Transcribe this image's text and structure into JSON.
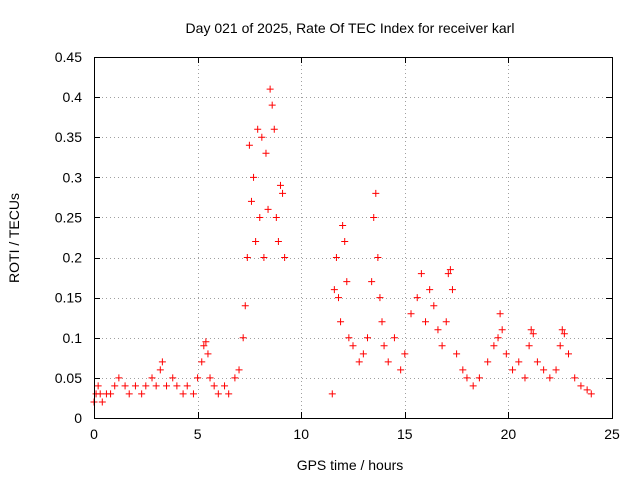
{
  "chart_data": {
    "type": "scatter",
    "title": "Day 021 of 2025, Rate Of TEC Index for receiver karl",
    "xlabel": "GPS time / hours",
    "ylabel": "ROTI / TECUs",
    "xlim": [
      0,
      25
    ],
    "ylim": [
      0,
      0.45
    ],
    "x_ticks": [
      "0",
      "5",
      "10",
      "15",
      "20",
      "25"
    ],
    "y_ticks": [
      "0",
      "0.05",
      "0.1",
      "0.15",
      "0.2",
      "0.25",
      "0.3",
      "0.35",
      "0.4",
      "0.45"
    ],
    "grid": true,
    "marker": "+",
    "color": "#ff0000",
    "series": [
      {
        "x": [
          0.0,
          0.1,
          0.2,
          0.3,
          0.4,
          0.6,
          0.8,
          1.0,
          1.2,
          1.5,
          1.7,
          2.0,
          2.3,
          2.5,
          2.8,
          3.0,
          3.2,
          3.3,
          3.5,
          3.8,
          4.0,
          4.3,
          4.5,
          4.8,
          5.0,
          5.2,
          5.3,
          5.4,
          5.5,
          5.6,
          5.8,
          6.0,
          6.3,
          6.5,
          6.8,
          7.0,
          7.2,
          7.3,
          7.4,
          7.5,
          7.6,
          7.7,
          7.8,
          7.9,
          8.0,
          8.1,
          8.2,
          8.3,
          8.4,
          8.5,
          8.6,
          8.7,
          8.8,
          8.9,
          9.0,
          9.1,
          9.2,
          11.5,
          11.6,
          11.7,
          11.8,
          11.9,
          12.0,
          12.1,
          12.2,
          12.3,
          12.5,
          12.8,
          13.0,
          13.2,
          13.4,
          13.5,
          13.6,
          13.7,
          13.8,
          13.9,
          14.0,
          14.2,
          14.5,
          14.8,
          15.0,
          15.3,
          15.6,
          15.8,
          16.0,
          16.2,
          16.4,
          16.6,
          16.8,
          17.0,
          17.1,
          17.2,
          17.3,
          17.5,
          17.8,
          18.0,
          18.3,
          18.6,
          19.0,
          19.3,
          19.5,
          19.6,
          19.7,
          19.9,
          20.2,
          20.5,
          20.8,
          21.0,
          21.1,
          21.2,
          21.4,
          21.7,
          22.0,
          22.3,
          22.5,
          22.6,
          22.7,
          22.9,
          23.2,
          23.5,
          23.8,
          24.0
        ],
        "y": [
          0.02,
          0.03,
          0.04,
          0.03,
          0.02,
          0.03,
          0.03,
          0.04,
          0.05,
          0.04,
          0.03,
          0.04,
          0.03,
          0.04,
          0.05,
          0.04,
          0.06,
          0.07,
          0.04,
          0.05,
          0.04,
          0.03,
          0.04,
          0.03,
          0.05,
          0.07,
          0.09,
          0.095,
          0.08,
          0.05,
          0.04,
          0.03,
          0.04,
          0.03,
          0.05,
          0.06,
          0.1,
          0.14,
          0.2,
          0.34,
          0.27,
          0.3,
          0.22,
          0.36,
          0.25,
          0.35,
          0.2,
          0.33,
          0.26,
          0.41,
          0.39,
          0.36,
          0.25,
          0.22,
          0.29,
          0.28,
          0.2,
          0.03,
          0.16,
          0.2,
          0.15,
          0.12,
          0.24,
          0.22,
          0.17,
          0.1,
          0.09,
          0.07,
          0.08,
          0.1,
          0.17,
          0.25,
          0.28,
          0.2,
          0.15,
          0.12,
          0.09,
          0.07,
          0.1,
          0.06,
          0.08,
          0.13,
          0.15,
          0.18,
          0.12,
          0.16,
          0.14,
          0.11,
          0.09,
          0.12,
          0.18,
          0.185,
          0.16,
          0.08,
          0.06,
          0.05,
          0.04,
          0.05,
          0.07,
          0.09,
          0.1,
          0.13,
          0.11,
          0.08,
          0.06,
          0.07,
          0.05,
          0.09,
          0.11,
          0.105,
          0.07,
          0.06,
          0.05,
          0.06,
          0.09,
          0.11,
          0.105,
          0.08,
          0.05,
          0.04,
          0.035,
          0.03
        ]
      }
    ]
  }
}
